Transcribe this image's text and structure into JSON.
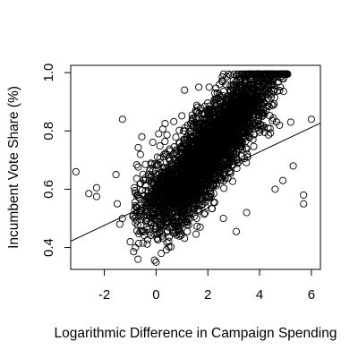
{
  "chart_data": {
    "type": "scatter",
    "title": "",
    "xlabel": "Logarithmic Difference in Campaign Spending",
    "ylabel": "Incumbent Vote Share (%)",
    "xlim": [
      -3.3,
      6.35
    ],
    "ylim": [
      0.325,
      1.025
    ],
    "x_ticks": [
      -2,
      0,
      2,
      4,
      6
    ],
    "x_tick_labels": [
      "-2",
      "0",
      "2",
      "4",
      "6"
    ],
    "y_ticks": [
      0.4,
      0.6,
      0.8,
      1.0
    ],
    "y_tick_labels": [
      "0.4",
      "0.6",
      "0.8",
      "1.0"
    ],
    "grid": false,
    "legend": "none",
    "marker": "open-circle",
    "fit_line": {
      "intercept": 0.56,
      "slope": 0.042
    },
    "cloud": {
      "approx_points": 3200,
      "x_range": [
        -0.9,
        5.1
      ],
      "center_at_x0": 0.56,
      "residual_sd": 0.075
    },
    "points": [
      {
        "x": -3.1,
        "y": 0.66
      },
      {
        "x": -2.6,
        "y": 0.585
      },
      {
        "x": -2.3,
        "y": 0.605
      },
      {
        "x": -2.3,
        "y": 0.575
      },
      {
        "x": -1.3,
        "y": 0.84
      },
      {
        "x": -1.55,
        "y": 0.65
      },
      {
        "x": -1.5,
        "y": 0.55
      },
      {
        "x": -1.4,
        "y": 0.48
      },
      {
        "x": -1.3,
        "y": 0.5
      },
      {
        "x": -1.0,
        "y": 0.42
      },
      {
        "x": -0.8,
        "y": 0.4
      },
      {
        "x": -0.7,
        "y": 0.36
      },
      {
        "x": -0.55,
        "y": 0.78
      },
      {
        "x": 0.0,
        "y": 0.35
      },
      {
        "x": 0.2,
        "y": 0.38
      },
      {
        "x": 0.1,
        "y": 0.79
      },
      {
        "x": 0.05,
        "y": 0.71
      },
      {
        "x": 1.1,
        "y": 0.94
      },
      {
        "x": 1.65,
        "y": 0.95
      },
      {
        "x": 2.05,
        "y": 0.95
      },
      {
        "x": 2.7,
        "y": 0.96
      },
      {
        "x": 3.0,
        "y": 0.93
      },
      {
        "x": 3.5,
        "y": 0.99
      },
      {
        "x": 4.1,
        "y": 0.95
      },
      {
        "x": 4.5,
        "y": 0.97
      },
      {
        "x": 4.8,
        "y": 0.95
      },
      {
        "x": 5.2,
        "y": 0.83
      },
      {
        "x": 5.3,
        "y": 0.68
      },
      {
        "x": 5.7,
        "y": 0.58
      },
      {
        "x": 5.7,
        "y": 0.55
      },
      {
        "x": 6.0,
        "y": 0.84
      },
      {
        "x": 3.1,
        "y": 0.455
      },
      {
        "x": 3.5,
        "y": 0.52
      },
      {
        "x": 2.6,
        "y": 0.5
      },
      {
        "x": 1.7,
        "y": 0.47
      },
      {
        "x": 4.6,
        "y": 0.6
      },
      {
        "x": 4.9,
        "y": 0.63
      }
    ]
  }
}
